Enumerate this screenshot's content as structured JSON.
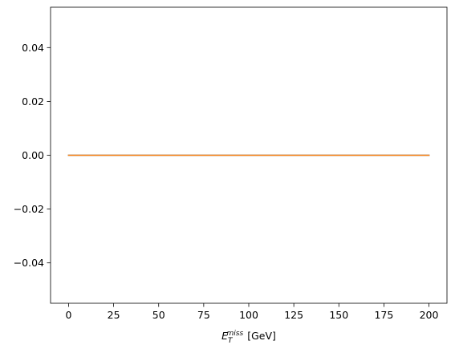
{
  "chart_data": {
    "type": "line",
    "title": "",
    "xlabel": {
      "symbol": "E",
      "subscript": "T",
      "superscript": "miss",
      "unit": "[GeV]"
    },
    "ylabel": "",
    "xlim": [
      -10,
      210
    ],
    "ylim": [
      -0.055,
      0.055
    ],
    "x_ticks": [
      0,
      25,
      50,
      75,
      100,
      125,
      150,
      175,
      200
    ],
    "x_tick_labels": [
      "0",
      "25",
      "50",
      "75",
      "100",
      "125",
      "150",
      "175",
      "200"
    ],
    "y_ticks": [
      -0.04,
      -0.02,
      0.0,
      0.02,
      0.04
    ],
    "y_tick_labels": [
      "−0.04",
      "−0.02",
      "0.00",
      "0.02",
      "0.04"
    ],
    "grid": false,
    "legend": "none",
    "series": [
      {
        "color": "#1f77b4",
        "x": [
          0,
          200
        ],
        "y": [
          0,
          0
        ]
      },
      {
        "color": "#ff7f0e",
        "x": [
          0,
          200
        ],
        "y": [
          0,
          0
        ]
      }
    ]
  }
}
